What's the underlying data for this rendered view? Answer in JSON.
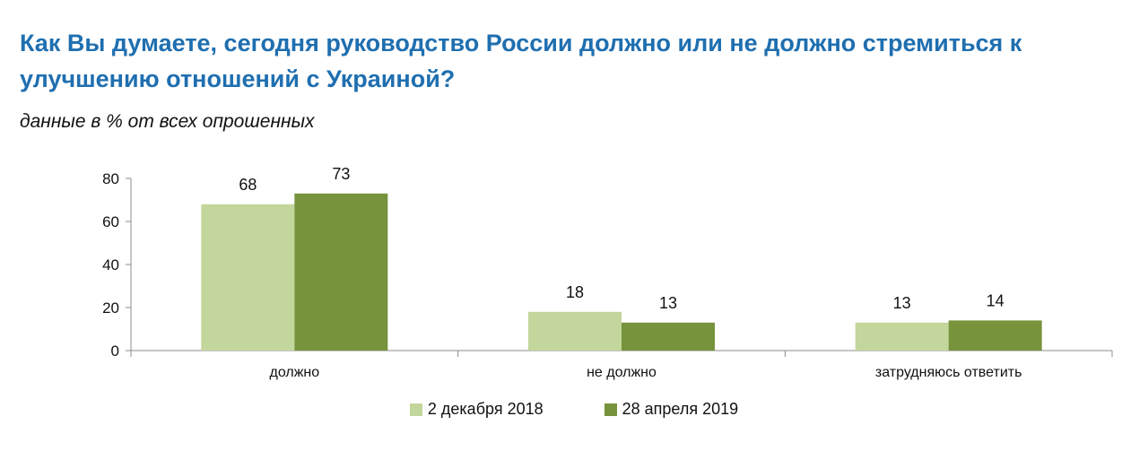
{
  "header": {
    "title": "Как Вы думаете, сегодня руководство России должно или не должно стремиться к улучшению отношений с Украиной?",
    "subtitle": "данные в % от всех опрошенных"
  },
  "colors": {
    "title": "#1f6fb0",
    "axis": "#8c8c8c"
  },
  "chart_data": {
    "type": "bar",
    "title": "Как Вы думаете, сегодня руководство России должно или не должно стремиться к улучшению отношений с Украиной?",
    "subtitle": "данные в % от всех опрошенных",
    "xlabel": "",
    "ylabel": "",
    "ylim": [
      0,
      80
    ],
    "yticks": [
      0,
      20,
      40,
      60,
      80
    ],
    "grid": false,
    "legend_position": "bottom",
    "categories": [
      "должно",
      "не должно",
      "затрудняюсь ответить"
    ],
    "series": [
      {
        "name": "2 декабря 2018",
        "color": "#c3d69b",
        "values": [
          68,
          18,
          13
        ]
      },
      {
        "name": "28 апреля 2019",
        "color": "#77933c",
        "values": [
          73,
          13,
          14
        ]
      }
    ]
  }
}
